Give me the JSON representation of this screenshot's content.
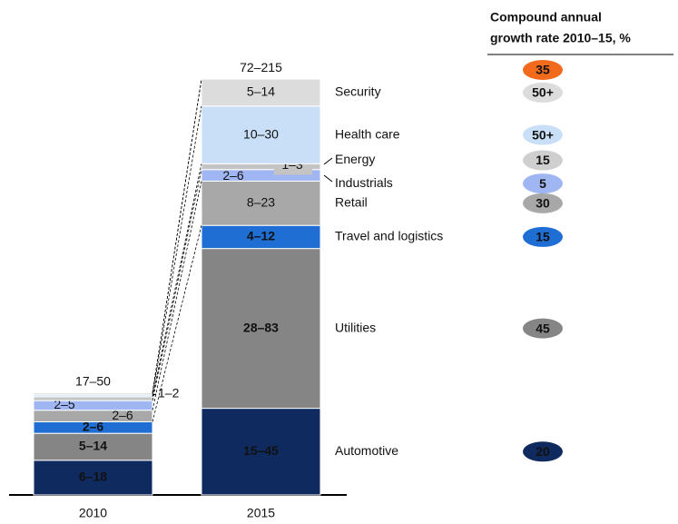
{
  "chart_data": {
    "type": "stacked_bar",
    "categories": [
      "2010",
      "2015"
    ],
    "totals": {
      "values": [
        50,
        215
      ],
      "value_labels": [
        "17–50",
        "72–215"
      ]
    },
    "growth_header": [
      "Compound annual",
      "growth rate 2010–15, %"
    ],
    "total_growth": {
      "value": 35,
      "color": "#f26b1d"
    },
    "series": [
      {
        "name": "Automotive",
        "color": "#0e2a5e",
        "values": [
          18,
          45
        ],
        "value_labels": [
          "6–18",
          "15–45"
        ],
        "growth": 20,
        "growth_color": "#0e2a5e"
      },
      {
        "name": "Utilities",
        "color": "#858585",
        "values": [
          14,
          83
        ],
        "value_labels": [
          "5–14",
          "28–83"
        ],
        "growth": 45,
        "growth_color": "#858585"
      },
      {
        "name": "Travel and logistics",
        "color": "#1f6ed4",
        "values": [
          6,
          12
        ],
        "value_labels": [
          "2–6",
          "4–12"
        ],
        "growth": 15,
        "growth_color": "#1f6ed4"
      },
      {
        "name": "Retail",
        "color": "#a8a8a8",
        "values": [
          6,
          23
        ],
        "value_labels": [
          "2–6",
          "8–23"
        ],
        "growth": 30,
        "growth_color": "#a8a8a8"
      },
      {
        "name": "Industrials",
        "color": "#9fb6f2",
        "values": [
          5,
          6
        ],
        "value_labels": [
          "2–5",
          "2–6"
        ],
        "growth": 5,
        "growth_color": "#9fb6f2"
      },
      {
        "name": "Energy",
        "color": "#c4c4c4",
        "values": [
          2,
          3
        ],
        "value_labels": [
          "1–2",
          "1–3"
        ],
        "growth": 15,
        "growth_label": "15",
        "growth_color": "#cfcfcf"
      },
      {
        "name": "Health care",
        "color": "#c8dff7",
        "values": [
          1,
          30
        ],
        "value_labels": [
          null,
          "10–30"
        ],
        "growth": 50,
        "growth_label": "50+",
        "growth_color": "#c8dff7"
      },
      {
        "name": "Security",
        "color": "#dcdcdc",
        "values": [
          1,
          14
        ],
        "value_labels": [
          null,
          "5–14"
        ],
        "growth": 50,
        "growth_label": "50+",
        "growth_color": "#dcdcdc"
      }
    ]
  }
}
